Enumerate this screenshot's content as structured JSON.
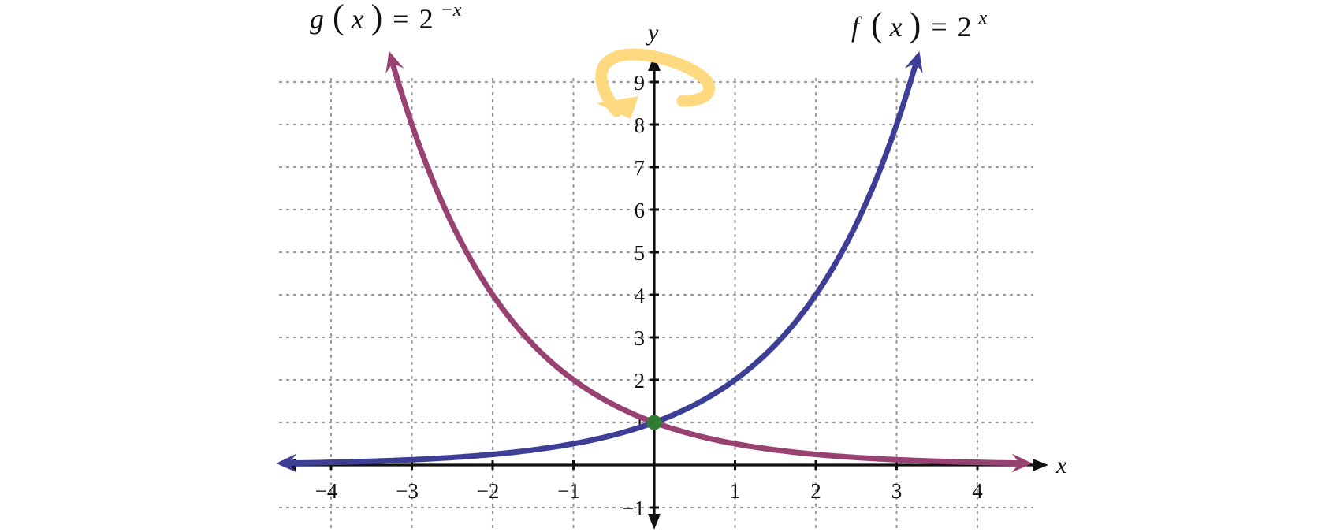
{
  "chart_data": {
    "type": "line",
    "title": "",
    "xlabel": "x",
    "ylabel": "y",
    "xlim": [
      -4.5,
      4.5
    ],
    "ylim": [
      -1,
      9.5
    ],
    "grid": true,
    "x_ticks": [
      -4,
      -3,
      -2,
      -1,
      1,
      2,
      3,
      4
    ],
    "x_tick_labels": [
      "−4",
      "−3",
      "−2",
      "−1",
      "1",
      "2",
      "3",
      "4"
    ],
    "y_ticks": [
      -1,
      1,
      2,
      3,
      4,
      5,
      6,
      7,
      8,
      9
    ],
    "y_tick_labels": [
      "−1",
      "1",
      "2",
      "3",
      "4",
      "5",
      "6",
      "7",
      "8",
      "9"
    ],
    "series": [
      {
        "name": "f(x) = 2^x",
        "label": {
          "fn": "f",
          "var": "x",
          "base": "2",
          "exp": "x"
        },
        "color": "#3d3f97",
        "x": [
          -4.6,
          -4,
          -3,
          -2,
          -1,
          0,
          1,
          2,
          3,
          3.26
        ],
        "y": [
          0.04,
          0.0625,
          0.125,
          0.25,
          0.5,
          1,
          2,
          4,
          8,
          9.58
        ]
      },
      {
        "name": "g(x) = 2^−x",
        "label": {
          "fn": "g",
          "var": "x",
          "base": "2",
          "exp": "−x"
        },
        "color": "#984274",
        "x": [
          -3.26,
          -3,
          -2,
          -1,
          0,
          1,
          2,
          3,
          4,
          4.6
        ],
        "y": [
          9.58,
          8,
          4,
          2,
          1,
          0.5,
          0.25,
          0.125,
          0.0625,
          0.04
        ]
      }
    ],
    "points": [
      {
        "x": 0,
        "y": 1,
        "color": "#2e7d32"
      }
    ],
    "annotations": [
      {
        "type": "reflection-arrow",
        "about": "y-axis",
        "color": "#ffd980"
      }
    ],
    "colors": {
      "axis": "#111111",
      "grid": "#9a9a9a"
    }
  }
}
